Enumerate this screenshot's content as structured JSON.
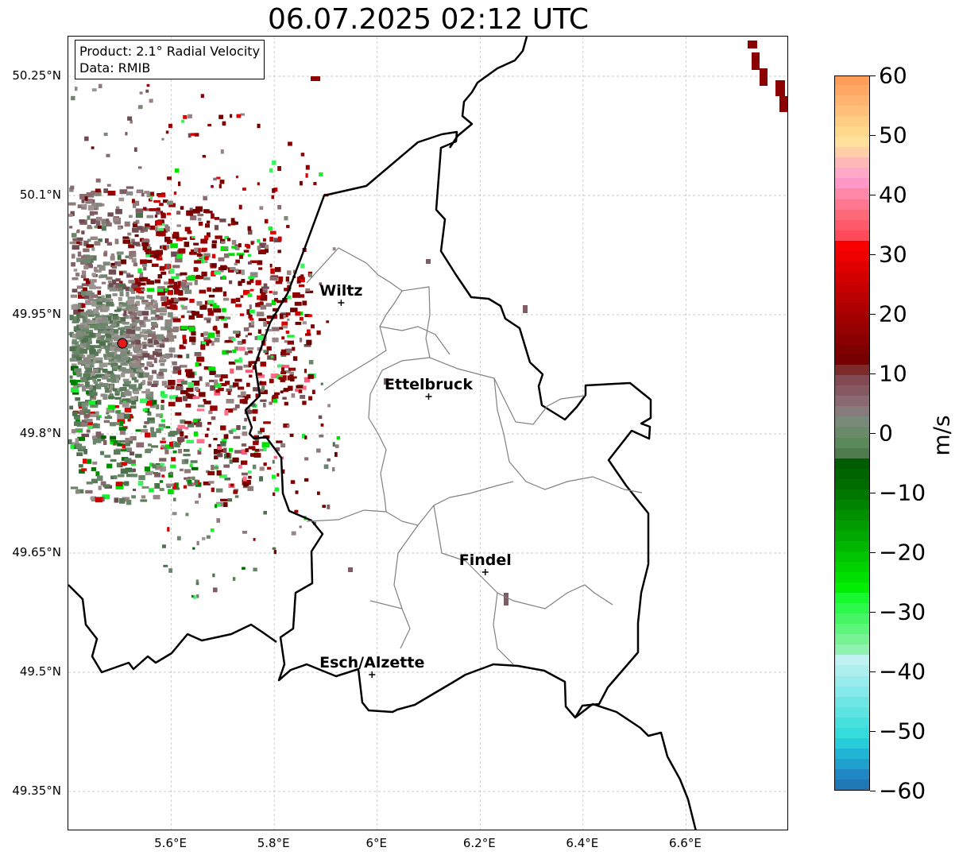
{
  "title": "06.07.2025 02:12 UTC",
  "info": {
    "product": "Product: 2.1° Radial Velocity",
    "data": "Data: RMIB"
  },
  "axes": {
    "lon_range": [
      5.4,
      6.8
    ],
    "lat_range": [
      49.3,
      50.3
    ],
    "lon_ticks": [
      "5.6°E",
      "5.8°E",
      "6°E",
      "6.2°E",
      "6.4°E",
      "6.6°E"
    ],
    "lon_tick_values": [
      5.6,
      5.8,
      6.0,
      6.2,
      6.4,
      6.6
    ],
    "lat_ticks": [
      "50.25°N",
      "50.1°N",
      "49.95°N",
      "49.8°N",
      "49.65°N",
      "49.5°N",
      "49.35°N"
    ],
    "lat_tick_values": [
      50.25,
      50.1,
      49.95,
      49.8,
      49.65,
      49.5,
      49.35
    ],
    "grid": true
  },
  "radar_site": {
    "lon": 5.505,
    "lat": 49.914,
    "color": "#e41a1c"
  },
  "cities": [
    {
      "name": "Wiltz",
      "lon": 5.93,
      "lat": 49.965
    },
    {
      "name": "Ettelbruck",
      "lon": 6.1,
      "lat": 49.847
    },
    {
      "name": "Findel",
      "lon": 6.21,
      "lat": 49.626
    },
    {
      "name": "Esch/Alzette",
      "lon": 5.99,
      "lat": 49.497
    }
  ],
  "colorbar": {
    "label": "m/s",
    "min": -60,
    "max": 60,
    "ticks": [
      "60",
      "50",
      "40",
      "30",
      "20",
      "10",
      "0",
      "−10",
      "−20",
      "−30",
      "−40",
      "−50",
      "−60"
    ],
    "tick_values": [
      60,
      50,
      40,
      30,
      20,
      10,
      0,
      -10,
      -20,
      -30,
      -40,
      -50,
      -60
    ],
    "colors": [
      "#1f78b4",
      "#1f88c4",
      "#20a0cc",
      "#22b4d4",
      "#28cdda",
      "#36dcdc",
      "#48e0df",
      "#5ce3e2",
      "#70e6e4",
      "#84e9e8",
      "#98ecec",
      "#acefee",
      "#bff2f0",
      "#8ff2b0",
      "#78f294",
      "#5ef57c",
      "#44f664",
      "#2cf94c",
      "#18fa30",
      "#00ee00",
      "#00e000",
      "#00d200",
      "#00c400",
      "#00b600",
      "#00a800",
      "#009c00",
      "#009000",
      "#008400",
      "#007800",
      "#006c00",
      "#006400",
      "#005c00",
      "#4e7a4e",
      "#5a8a5a",
      "#6a8a6a",
      "#7a8a78",
      "#877a7a",
      "#8a6a70",
      "#865862",
      "#834a54",
      "#7c2a2a",
      "#760000",
      "#800000",
      "#8a0000",
      "#960000",
      "#a20000",
      "#ae0000",
      "#ba0000",
      "#c60000",
      "#d40000",
      "#e00000",
      "#ec0000",
      "#f80000",
      "#ff4a5a",
      "#ff5a6a",
      "#ff6a7a",
      "#ff7890",
      "#ff88a8",
      "#ff98c8",
      "#ffa8c8",
      "#ffb8b8",
      "#ffd0a8",
      "#ffe09c",
      "#ffd88c",
      "#ffcc84",
      "#ffc07c",
      "#ffb470",
      "#ffa864",
      "#ff9c58"
    ]
  }
}
